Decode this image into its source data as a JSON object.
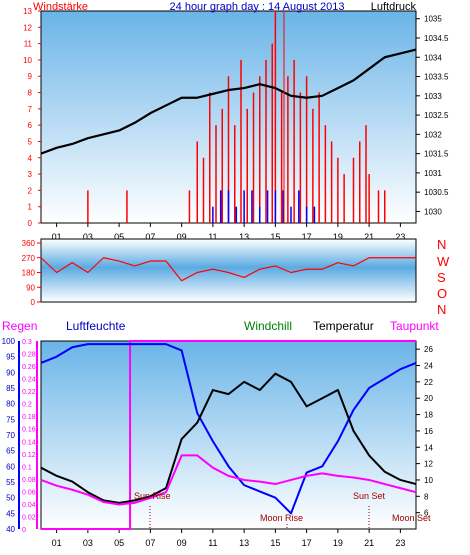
{
  "header": {
    "left_label": "Windstärke",
    "title": "24 hour graph day : 14 August 2013",
    "right_label": "Luftdruck"
  },
  "middle": {
    "compass_labels": [
      "N",
      "W",
      "S",
      "O",
      "N"
    ]
  },
  "bottom_header": {
    "regen": "Regen",
    "luftfeuchte": "Luftfeuchte",
    "windchill": "Windchill",
    "temperatur": "Temperatur",
    "taupunkt": "Taupunkt"
  },
  "annotations": {
    "sun_rise": "Sun Rise",
    "moon_rise": "Moon Rise",
    "sun_set": "Sun Set",
    "moon_set": "Moon Set"
  },
  "colors": {
    "panel_top": "#6ab4e8",
    "panel_bottom": "#ffffff",
    "pressure": "#000000",
    "wind_gust": "#ff0000",
    "wind_avg": "#0000ff",
    "humidity": "#0000ff",
    "temperature": "#000000",
    "dewpoint": "#ff00ff",
    "rain": "#ff00ff",
    "windchill": "#008000",
    "winddir": "#ff0000"
  },
  "chart_data": [
    {
      "type": "line",
      "x_ticks": [
        "01",
        "03",
        "05",
        "07",
        "09",
        "11",
        "13",
        "15",
        "17",
        "19",
        "21",
        "23"
      ],
      "left_axis": {
        "label": "Windstärke",
        "ticks": [
          "0",
          "1",
          "2",
          "3",
          "4",
          "5",
          "6",
          "7",
          "8",
          "9",
          "10",
          "11",
          "12",
          "13"
        ],
        "range": [
          0,
          13
        ]
      },
      "right_axis": {
        "label": "Luftdruck",
        "ticks": [
          "1030",
          "1030.5",
          "1031",
          "1031.5",
          "1032",
          "1032.5",
          "1033",
          "1033.5",
          "1034",
          "1034.5",
          "1035"
        ],
        "range": [
          1029.7,
          1035.2
        ]
      },
      "series": [
        {
          "name": "Luftdruck",
          "axis": "right",
          "x": [
            0,
            1,
            2,
            3,
            4,
            5,
            6,
            7,
            8,
            9,
            10,
            11,
            12,
            13,
            14,
            15,
            16,
            17,
            18,
            19,
            20,
            21,
            22,
            23,
            24
          ],
          "y": [
            1031.5,
            1031.65,
            1031.75,
            1031.9,
            1032.0,
            1032.1,
            1032.3,
            1032.55,
            1032.75,
            1032.95,
            1032.95,
            1033.05,
            1033.15,
            1033.2,
            1033.3,
            1033.2,
            1033.0,
            1032.95,
            1033.0,
            1033.2,
            1033.4,
            1033.7,
            1034.0,
            1034.1,
            1034.2
          ]
        },
        {
          "name": "Windstärke",
          "axis": "left",
          "style": "bars",
          "x": [
            3,
            5.5,
            9.5,
            10,
            10.4,
            10.8,
            11.2,
            11.6,
            12,
            12.4,
            12.8,
            13.2,
            13.6,
            14,
            14.4,
            14.8,
            15,
            15.4,
            15.8,
            16.2,
            16.6,
            17,
            17.4,
            17.8,
            18.2,
            18.6,
            19,
            19.4,
            20,
            20.4,
            20.8,
            21,
            21.6,
            22
          ],
          "y": [
            2,
            2,
            2,
            5,
            4,
            8,
            6,
            7,
            9,
            6,
            10,
            7,
            8,
            9,
            10,
            11,
            13,
            8,
            9,
            10,
            8,
            9,
            7,
            8,
            6,
            5,
            4,
            3,
            4,
            5,
            6,
            3,
            2,
            2
          ]
        },
        {
          "name": "Wind mean",
          "axis": "left",
          "style": "bars",
          "x": [
            11,
            11.5,
            12,
            12.5,
            13,
            13.5,
            14,
            14.5,
            15,
            15.5,
            16,
            16.5,
            17,
            17.5
          ],
          "y": [
            1,
            2,
            2,
            1,
            2,
            2,
            1,
            2,
            2,
            2,
            1,
            2,
            1,
            1
          ]
        }
      ]
    },
    {
      "type": "line",
      "x_ticks": [
        "01",
        "03",
        "05",
        "07",
        "09",
        "11",
        "13",
        "15",
        "17",
        "19",
        "21",
        "23"
      ],
      "left_axis": {
        "ticks": [
          "0",
          "90",
          "180",
          "270",
          "360"
        ],
        "range": [
          0,
          360
        ]
      },
      "series": [
        {
          "name": "Windrichtung",
          "axis": "left",
          "x": [
            0,
            1,
            2,
            3,
            4,
            5,
            6,
            7,
            8,
            9,
            10,
            11,
            12,
            13,
            14,
            15,
            16,
            17,
            18,
            19,
            20,
            21,
            22,
            23,
            24
          ],
          "y": [
            270,
            180,
            240,
            180,
            270,
            250,
            220,
            250,
            250,
            130,
            180,
            200,
            180,
            150,
            200,
            220,
            180,
            200,
            200,
            240,
            220,
            270,
            270,
            270,
            270
          ]
        }
      ]
    },
    {
      "type": "line",
      "x_ticks": [
        "01",
        "03",
        "05",
        "07",
        "09",
        "11",
        "13",
        "15",
        "17",
        "19",
        "21",
        "23"
      ],
      "regen_axis": {
        "ticks": [
          "0",
          "0.02",
          "0.04",
          "0.06",
          "0.08",
          "0.1",
          "0.12",
          "0.14",
          "0.16",
          "0.18",
          "0.2",
          "0.22",
          "0.24",
          "0.26",
          "0.28",
          "0.3"
        ],
        "range": [
          0,
          0.3
        ]
      },
      "humidity_axis": {
        "ticks": [
          "40",
          "45",
          "50",
          "55",
          "60",
          "65",
          "70",
          "75",
          "80",
          "85",
          "90",
          "95",
          "100"
        ],
        "range": [
          40,
          100
        ]
      },
      "temp_axis": {
        "ticks": [
          "6",
          "8",
          "10",
          "12",
          "14",
          "16",
          "18",
          "20",
          "22",
          "24",
          "26"
        ],
        "range": [
          4,
          27
        ]
      },
      "series": [
        {
          "name": "Luftfeuchte",
          "axis": "humidity",
          "x": [
            0,
            1,
            2,
            3,
            4,
            5,
            6,
            7,
            8,
            9,
            10,
            11,
            12,
            13,
            14,
            15,
            16,
            17,
            18,
            19,
            20,
            21,
            22,
            23,
            24
          ],
          "y": [
            93,
            95,
            98,
            99,
            99,
            99,
            99,
            99,
            99,
            97,
            77,
            68,
            60,
            54,
            52,
            50,
            45,
            58,
            60,
            68,
            78,
            85,
            88,
            91,
            93
          ]
        },
        {
          "name": "Temperatur",
          "axis": "temp",
          "x": [
            0,
            1,
            2,
            3,
            4,
            5,
            6,
            7,
            8,
            9,
            10,
            11,
            12,
            13,
            14,
            15,
            16,
            17,
            18,
            19,
            20,
            21,
            22,
            23,
            24
          ],
          "y": [
            11.5,
            10.5,
            9.8,
            8.5,
            7.5,
            7.2,
            7.5,
            8,
            9,
            15,
            17,
            21,
            20.5,
            22,
            21,
            23,
            22,
            19,
            20,
            21,
            16,
            13,
            11,
            10,
            9.5
          ]
        },
        {
          "name": "Taupunkt",
          "axis": "temp",
          "x": [
            0,
            1,
            2,
            3,
            4,
            5,
            6,
            7,
            8,
            9,
            10,
            11,
            12,
            13,
            14,
            15,
            16,
            17,
            18,
            19,
            20,
            21,
            22,
            23,
            24
          ],
          "y": [
            10,
            9.3,
            8.8,
            8.2,
            7.3,
            7,
            7.2,
            7.8,
            8.5,
            13,
            13,
            11.5,
            10.5,
            10,
            9.8,
            9.5,
            10,
            10.5,
            10.8,
            10.5,
            10.3,
            10,
            9.5,
            9,
            8.5
          ]
        },
        {
          "name": "Regen",
          "axis": "regen",
          "x": [
            0,
            5.7,
            5.7,
            24
          ],
          "y": [
            0,
            0,
            0.3,
            0.3
          ]
        }
      ]
    }
  ]
}
